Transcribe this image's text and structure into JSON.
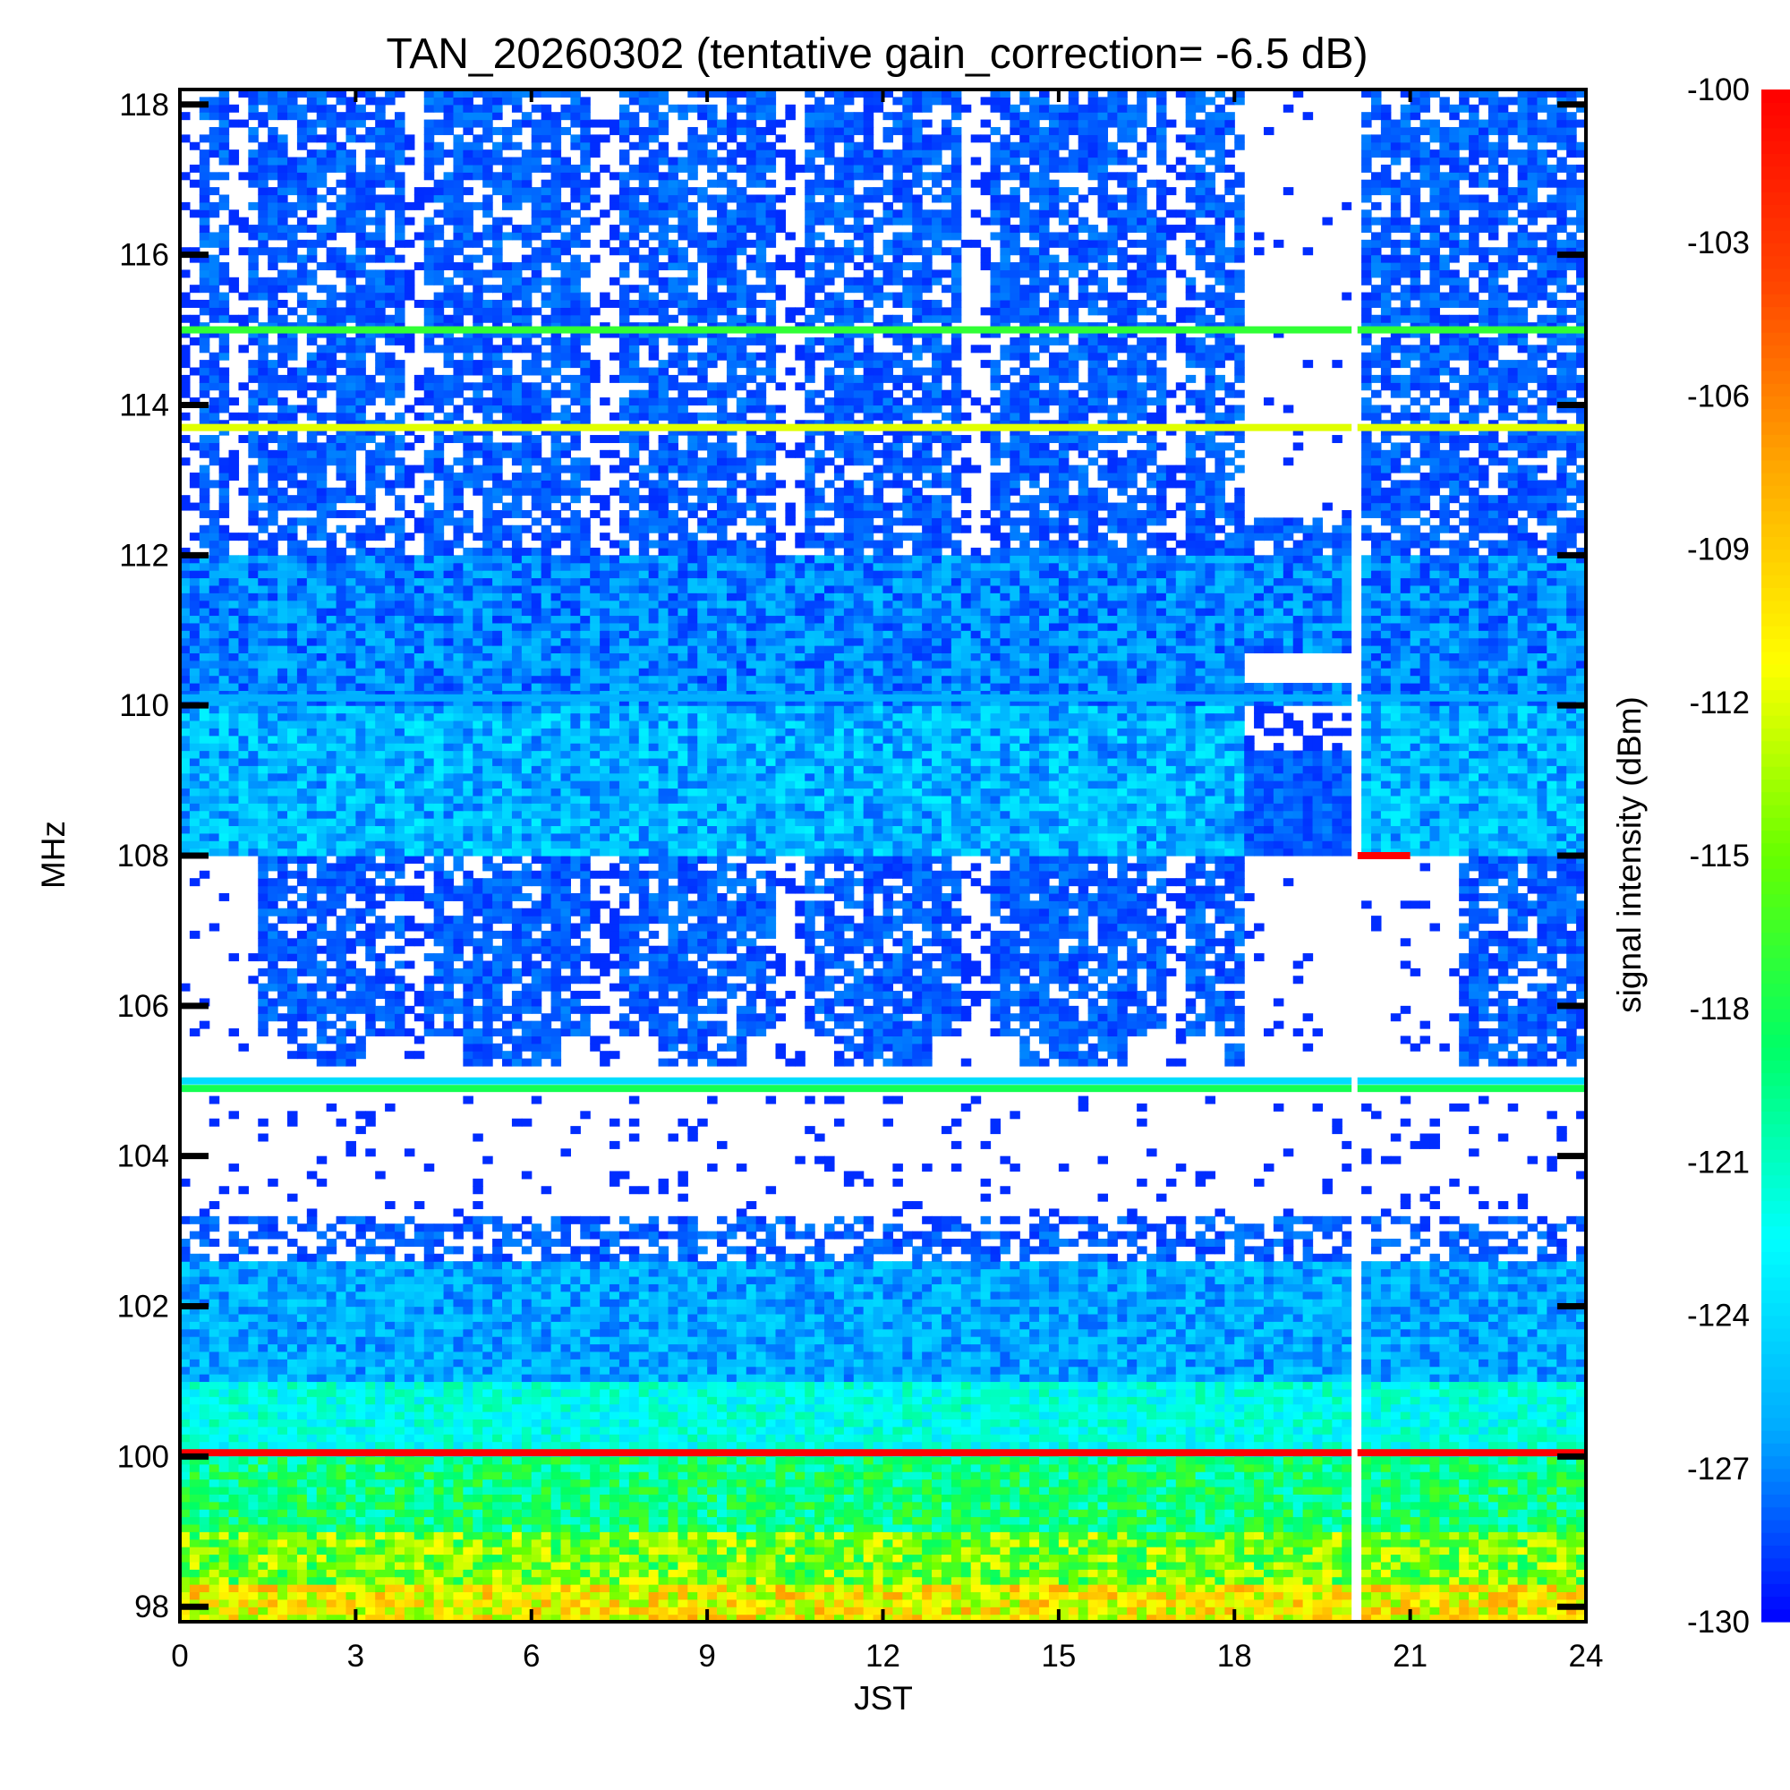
{
  "chart_data": {
    "type": "heatmap",
    "title": "TAN_20260302 (tentative gain_correction= -6.5 dB)",
    "xlabel": "JST",
    "ylabel": "MHz",
    "colorbar_label": "signal intensity (dBm)",
    "xlim": [
      0,
      24
    ],
    "ylim": [
      97.8,
      118.2
    ],
    "x_ticks": [
      0,
      3,
      6,
      9,
      12,
      15,
      18,
      21,
      24
    ],
    "x_tick_labels": [
      "0",
      "3",
      "6",
      "9",
      "12",
      "15",
      "18",
      "21",
      "24"
    ],
    "y_ticks": [
      98,
      100,
      102,
      104,
      106,
      108,
      110,
      112,
      114,
      116,
      118
    ],
    "y_tick_labels": [
      "98",
      "100",
      "102",
      "104",
      "106",
      "108",
      "110",
      "112",
      "114",
      "116",
      "118"
    ],
    "color_range": [
      -130,
      -100
    ],
    "colorbar_ticks": [
      -100,
      -103,
      -106,
      -109,
      -112,
      -115,
      -118,
      -121,
      -124,
      -127,
      -130
    ],
    "colorbar_tick_labels": [
      "-100",
      "-103",
      "-106",
      "-109",
      "-112",
      "-115",
      "-118",
      "-121",
      "-124",
      "-127",
      "-130"
    ],
    "colormap": [
      "#0000ff",
      "#00aaff",
      "#00ffff",
      "#00ff66",
      "#66ff00",
      "#ffff00",
      "#ffaa00",
      "#ff4400",
      "#ff0000"
    ],
    "features": {
      "data_gap_jst": [
        20.0,
        20.1
      ],
      "persistent_lines": [
        {
          "freq_mhz": 115.0,
          "dbm": -117
        },
        {
          "freq_mhz": 113.7,
          "dbm": -112
        },
        {
          "freq_mhz": 110.1,
          "dbm": -126
        },
        {
          "freq_mhz": 108.0,
          "dbm": -100
        },
        {
          "freq_mhz": 105.0,
          "dbm": -124
        },
        {
          "freq_mhz": 104.9,
          "dbm": -118
        },
        {
          "freq_mhz": 100.05,
          "dbm": -100
        }
      ],
      "aircraft_pass_centers_jst": [
        1.0,
        4.0,
        7.3,
        10.4,
        13.6,
        17.0
      ],
      "empty_band_mhz": [
        103.2,
        104.8
      ]
    }
  }
}
